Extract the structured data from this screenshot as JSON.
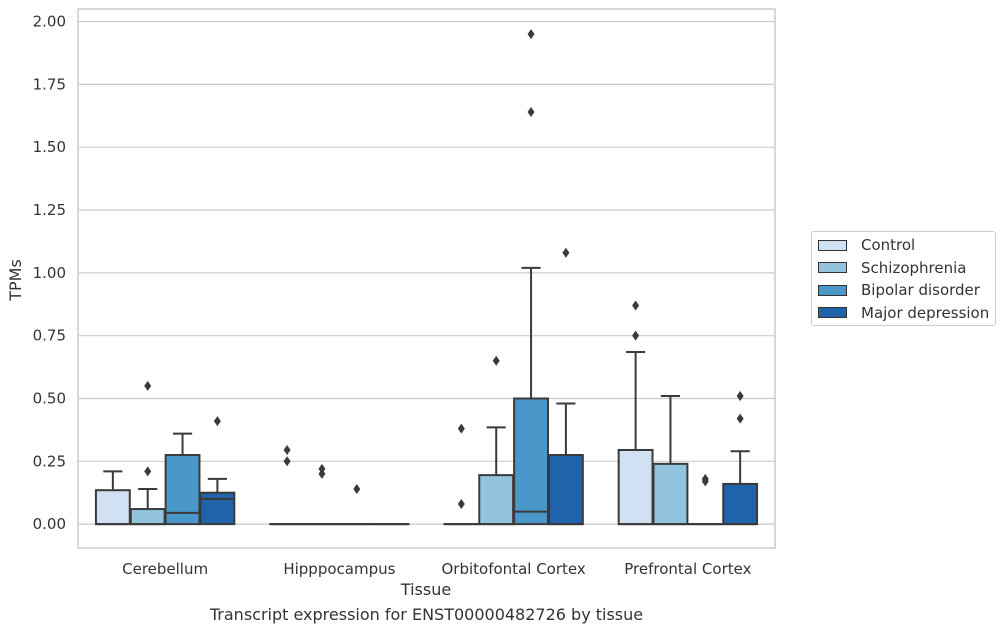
{
  "chart_data": {
    "type": "box",
    "title": "",
    "xlabel": "Tissue",
    "ylabel": "TPMs",
    "caption": "Transcript expression for ENST00000482726 by tissue",
    "ylim": [
      -0.095,
      2.05
    ],
    "yticks": [
      "0.00",
      "0.25",
      "0.50",
      "0.75",
      "1.00",
      "1.25",
      "1.50",
      "1.75",
      "2.00"
    ],
    "grid": "horizontal",
    "legend_position": "right",
    "categories": [
      "Cerebellum",
      "Hipppocampus",
      "Orbitofontal Cortex",
      "Prefrontal Cortex"
    ],
    "series": [
      {
        "name": "Control",
        "color": "#cfe1f2",
        "boxes": [
          {
            "q1": 0.0,
            "median": 0.0,
            "q3": 0.135,
            "whisker_low": 0.0,
            "whisker_high": 0.21,
            "outliers": []
          },
          {
            "q1": 0.0,
            "median": 0.0,
            "q3": 0.0,
            "whisker_low": 0.0,
            "whisker_high": 0.0,
            "outliers": [
              0.25,
              0.295
            ]
          },
          {
            "q1": 0.0,
            "median": 0.0,
            "q3": 0.0,
            "whisker_low": 0.0,
            "whisker_high": 0.0,
            "outliers": [
              0.08,
              0.38
            ]
          },
          {
            "q1": 0.0,
            "median": 0.0,
            "q3": 0.295,
            "whisker_low": 0.0,
            "whisker_high": 0.685,
            "outliers": [
              0.75,
              0.87
            ]
          }
        ]
      },
      {
        "name": "Schizophrenia",
        "color": "#93c4de",
        "boxes": [
          {
            "q1": 0.0,
            "median": 0.0,
            "q3": 0.06,
            "whisker_low": 0.0,
            "whisker_high": 0.14,
            "outliers": [
              0.21,
              0.55
            ]
          },
          {
            "q1": 0.0,
            "median": 0.0,
            "q3": 0.0,
            "whisker_low": 0.0,
            "whisker_high": 0.0,
            "outliers": [
              0.2,
              0.22
            ]
          },
          {
            "q1": 0.0,
            "median": 0.0,
            "q3": 0.195,
            "whisker_low": 0.0,
            "whisker_high": 0.385,
            "outliers": [
              0.65
            ]
          },
          {
            "q1": 0.0,
            "median": 0.0,
            "q3": 0.24,
            "whisker_low": 0.0,
            "whisker_high": 0.51,
            "outliers": []
          }
        ]
      },
      {
        "name": "Bipolar disorder",
        "color": "#4a98c9",
        "boxes": [
          {
            "q1": 0.0,
            "median": 0.045,
            "q3": 0.275,
            "whisker_low": 0.0,
            "whisker_high": 0.36,
            "outliers": []
          },
          {
            "q1": 0.0,
            "median": 0.0,
            "q3": 0.0,
            "whisker_low": 0.0,
            "whisker_high": 0.0,
            "outliers": [
              0.14
            ]
          },
          {
            "q1": 0.0,
            "median": 0.05,
            "q3": 0.5,
            "whisker_low": 0.0,
            "whisker_high": 1.02,
            "outliers": [
              1.64,
              1.95
            ]
          },
          {
            "q1": 0.0,
            "median": 0.0,
            "q3": 0.0,
            "whisker_low": 0.0,
            "whisker_high": 0.0,
            "outliers": [
              0.17,
              0.18
            ]
          }
        ]
      },
      {
        "name": "Major depression",
        "color": "#2163aa",
        "boxes": [
          {
            "q1": 0.0,
            "median": 0.1,
            "q3": 0.125,
            "whisker_low": 0.0,
            "whisker_high": 0.18,
            "outliers": [
              0.41
            ]
          },
          {
            "q1": 0.0,
            "median": 0.0,
            "q3": 0.0,
            "whisker_low": 0.0,
            "whisker_high": 0.0,
            "outliers": []
          },
          {
            "q1": 0.0,
            "median": 0.0,
            "q3": 0.275,
            "whisker_low": 0.0,
            "whisker_high": 0.48,
            "outliers": [
              1.08
            ]
          },
          {
            "q1": 0.0,
            "median": 0.0,
            "q3": 0.16,
            "whisker_low": 0.0,
            "whisker_high": 0.29,
            "outliers": [
              0.42,
              0.51
            ]
          }
        ]
      }
    ]
  }
}
